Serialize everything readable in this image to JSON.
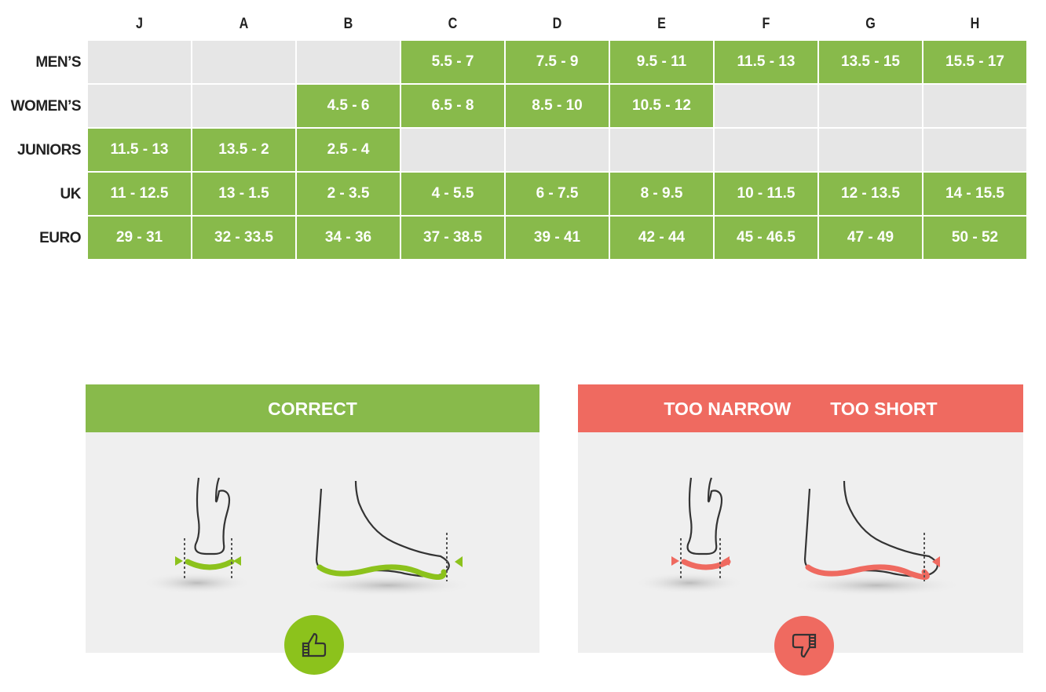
{
  "columns": [
    "J",
    "A",
    "B",
    "C",
    "D",
    "E",
    "F",
    "G",
    "H"
  ],
  "rows": [
    {
      "label": "MEN’S",
      "cells": [
        "",
        "",
        "",
        "5.5 - 7",
        "7.5 - 9",
        "9.5 - 11",
        "11.5 - 13",
        "13.5 - 15",
        "15.5 - 17"
      ]
    },
    {
      "label": "WOMEN’S",
      "cells": [
        "",
        "",
        "4.5 - 6",
        "6.5 - 8",
        "8.5 - 10",
        "10.5 - 12",
        "",
        "",
        ""
      ]
    },
    {
      "label": "JUNIORS",
      "cells": [
        "11.5 - 13",
        "13.5 - 2",
        "2.5 - 4",
        "",
        "",
        "",
        "",
        "",
        ""
      ]
    },
    {
      "label": "UK",
      "cells": [
        "11 - 12.5",
        "13 - 1.5",
        "2 - 3.5",
        "4 - 5.5",
        "6 - 7.5",
        "8 - 9.5",
        "10 - 11.5",
        "12 - 13.5",
        "14 - 15.5"
      ]
    },
    {
      "label": "EURO",
      "cells": [
        "29 - 31",
        "32 - 33.5",
        "34 - 36",
        "37 - 38.5",
        "39 - 41",
        "42 - 44",
        "45 - 46.5",
        "47 - 49",
        "50 - 52"
      ]
    }
  ],
  "panels": {
    "correct": {
      "title": "CORRECT",
      "color": "#88ba4b",
      "icon": "thumbs-up-icon",
      "accent": "#8cc21c"
    },
    "wrong": {
      "titles": [
        "TOO NARROW",
        "TOO SHORT"
      ],
      "color": "#ef6a60",
      "icon": "thumbs-down-icon",
      "accent": "#ef6a60"
    }
  }
}
